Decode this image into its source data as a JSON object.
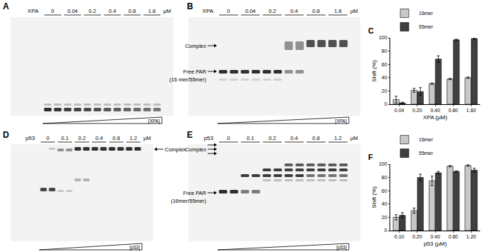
{
  "gels": [
    {
      "panel": "A",
      "protein": "XPA",
      "concentrations": [
        "0",
        "0.04",
        "0.2",
        "0.4",
        "0.8",
        "1.6"
      ],
      "unit": "µM",
      "gradient_label": "[XPA]",
      "labels": []
    },
    {
      "panel": "B",
      "protein": "XPA",
      "concentrations": [
        "0",
        "0.04",
        "0.2",
        "0.4",
        "0.8",
        "1.6"
      ],
      "unit": "µM",
      "gradient_label": "[XPA]",
      "labels": [
        "Complex",
        "Free PAR",
        "(16 mer/55mer)"
      ]
    },
    {
      "panel": "D",
      "protein": "p53",
      "concentrations": [
        "0",
        "0.1",
        "0.2",
        "0.4",
        "0.8",
        "1.2"
      ],
      "unit": "µM",
      "gradient_label": "[p53]",
      "labels": [
        "Complex"
      ]
    },
    {
      "panel": "E",
      "protein": "p53",
      "concentrations": [
        "0",
        "0.1",
        "0.2",
        "0.4",
        "0.8",
        "1.2"
      ],
      "unit": "µM",
      "gradient_label": "[p53]",
      "labels": [
        "Complex",
        "Free PAR",
        "(16mer/55mer)"
      ]
    }
  ],
  "chart_data": [
    {
      "type": "bar",
      "annotations": [
        "C"
      ],
      "x_label": "XPA (µM)",
      "y_label": "Shift (%)",
      "categories": [
        "0.04",
        "0.20",
        "0.40",
        "0.80",
        "1.60"
      ],
      "series": [
        {
          "name": "16mer",
          "color": "#c8c8c8",
          "values": [
            7,
            21,
            31,
            38,
            40
          ],
          "errors": [
            5,
            3,
            1,
            1,
            1
          ]
        },
        {
          "name": "55mer",
          "color": "#404040",
          "values": [
            2,
            19,
            68,
            97,
            99
          ],
          "errors": [
            1,
            6,
            5,
            1,
            1
          ]
        }
      ],
      "ylim": [
        0,
        100
      ],
      "yticks": [
        0,
        20,
        40,
        60,
        80,
        100
      ],
      "legend": "top"
    },
    {
      "type": "bar",
      "annotations": [
        "F"
      ],
      "x_label": "p53 (µM)",
      "y_label": "Shift (%)",
      "categories": [
        "0.10",
        "0.20",
        "0.40",
        "0.80",
        "1.20"
      ],
      "series": [
        {
          "name": "16mer",
          "color": "#c8c8c8",
          "values": [
            20,
            30,
            75,
            97,
            98
          ],
          "errors": [
            4,
            4,
            7,
            1,
            1
          ]
        },
        {
          "name": "55mer",
          "color": "#404040",
          "values": [
            23,
            80,
            87,
            89,
            91
          ],
          "errors": [
            4,
            5,
            2,
            1,
            3
          ]
        }
      ],
      "ylim": [
        0,
        100
      ],
      "yticks": [
        0,
        20,
        40,
        60,
        80,
        100
      ],
      "legend": "top"
    }
  ]
}
